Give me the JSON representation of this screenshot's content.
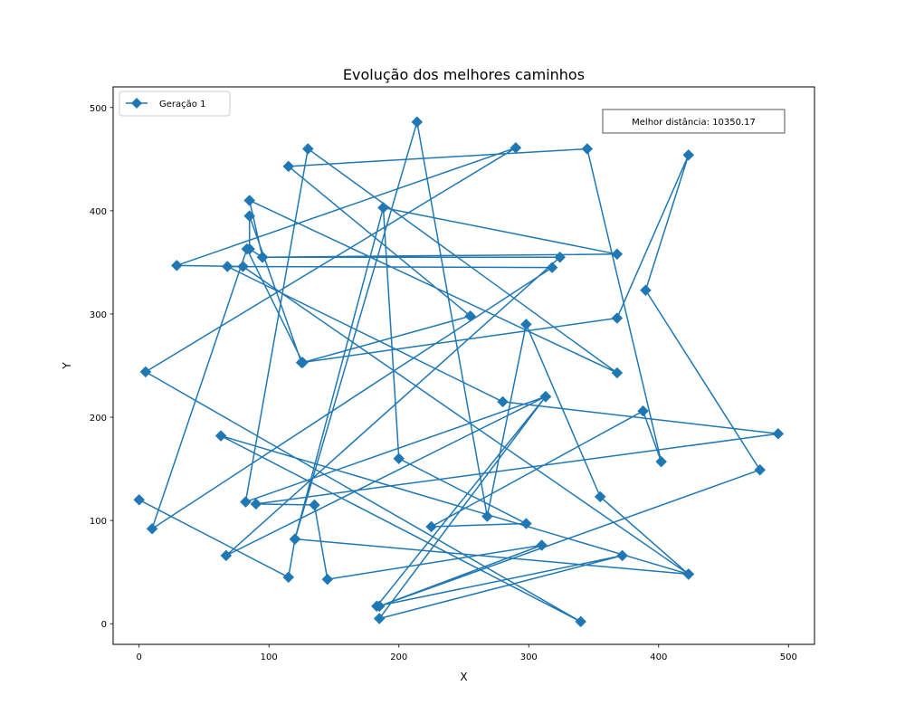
{
  "chart_data": {
    "type": "line",
    "title": "Evolução dos melhores caminhos",
    "xlabel": "X",
    "ylabel": "Y",
    "xlim": [
      -20,
      520
    ],
    "ylim": [
      -20,
      520
    ],
    "xticks": [
      0,
      100,
      200,
      300,
      400,
      500
    ],
    "yticks": [
      0,
      100,
      200,
      300,
      400,
      500
    ],
    "grid": false,
    "legend_position": "top-left",
    "annotation": "Melhor distância: 10350.17",
    "series": [
      {
        "name": "Geração 1",
        "color": "#1f77b4",
        "marker": "diamond",
        "points": [
          [
            0,
            120
          ],
          [
            115,
            45
          ],
          [
            120,
            82
          ],
          [
            214,
            486
          ],
          [
            268,
            104
          ],
          [
            298,
            290
          ],
          [
            355,
            123
          ],
          [
            423,
            48
          ],
          [
            80,
            346
          ],
          [
            29,
            347
          ],
          [
            290,
            461
          ],
          [
            5,
            244
          ],
          [
            340,
            2
          ],
          [
            63,
            182
          ],
          [
            423,
            48
          ],
          [
            120,
            82
          ],
          [
            188,
            403
          ],
          [
            368,
            358
          ],
          [
            95,
            355
          ],
          [
            324,
            355
          ],
          [
            67,
            66
          ],
          [
            313,
            220
          ],
          [
            183,
            17
          ],
          [
            372,
            66
          ],
          [
            185,
            5
          ],
          [
            313,
            220
          ],
          [
            82,
            118
          ],
          [
            130,
            460
          ],
          [
            368,
            243
          ],
          [
            85,
            410
          ],
          [
            95,
            355
          ],
          [
            85,
            363
          ],
          [
            85,
            395
          ],
          [
            125,
            253
          ],
          [
            368,
            296
          ],
          [
            423,
            454
          ],
          [
            390,
            323
          ],
          [
            478,
            149
          ],
          [
            185,
            17
          ],
          [
            310,
            76
          ],
          [
            145,
            43
          ],
          [
            135,
            115
          ],
          [
            90,
            116
          ],
          [
            492,
            184
          ],
          [
            280,
            215
          ],
          [
            68,
            346
          ],
          [
            318,
            345
          ],
          [
            10,
            92
          ],
          [
            83,
            363
          ],
          [
            126,
            253
          ],
          [
            255,
            298
          ],
          [
            115,
            443
          ],
          [
            345,
            460
          ],
          [
            402,
            157
          ],
          [
            388,
            206
          ],
          [
            225,
            94
          ],
          [
            298,
            97
          ],
          [
            200,
            160
          ],
          [
            188,
            403
          ]
        ]
      }
    ]
  }
}
